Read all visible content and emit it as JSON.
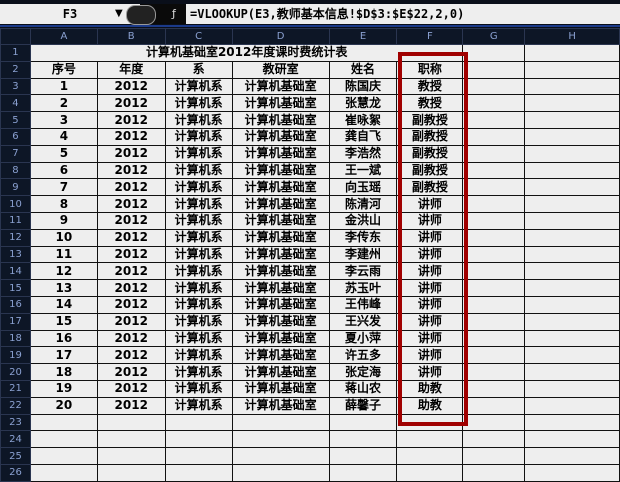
{
  "formula_bar": {
    "name_box": "F3",
    "formula": "=VLOOKUP(E3,教师基本信息!$D$3:$E$22,2,0)"
  },
  "columns": [
    "A",
    "B",
    "C",
    "D",
    "E",
    "F",
    "G",
    "H"
  ],
  "title": "计算机基础室2012年度课时费统计表",
  "headers": [
    "序号",
    "年度",
    "系",
    "教研室",
    "姓名",
    "职称"
  ],
  "rows": [
    [
      "1",
      "2012",
      "计算机系",
      "计算机基础室",
      "陈国庆",
      "教授"
    ],
    [
      "2",
      "2012",
      "计算机系",
      "计算机基础室",
      "张慧龙",
      "教授"
    ],
    [
      "3",
      "2012",
      "计算机系",
      "计算机基础室",
      "崔咏絮",
      "副教授"
    ],
    [
      "4",
      "2012",
      "计算机系",
      "计算机基础室",
      "龚自飞",
      "副教授"
    ],
    [
      "5",
      "2012",
      "计算机系",
      "计算机基础室",
      "李浩然",
      "副教授"
    ],
    [
      "6",
      "2012",
      "计算机系",
      "计算机基础室",
      "王一斌",
      "副教授"
    ],
    [
      "7",
      "2012",
      "计算机系",
      "计算机基础室",
      "向玉瑶",
      "副教授"
    ],
    [
      "8",
      "2012",
      "计算机系",
      "计算机基础室",
      "陈清河",
      "讲师"
    ],
    [
      "9",
      "2012",
      "计算机系",
      "计算机基础室",
      "金洪山",
      "讲师"
    ],
    [
      "10",
      "2012",
      "计算机系",
      "计算机基础室",
      "李传东",
      "讲师"
    ],
    [
      "11",
      "2012",
      "计算机系",
      "计算机基础室",
      "李建州",
      "讲师"
    ],
    [
      "12",
      "2012",
      "计算机系",
      "计算机基础室",
      "李云雨",
      "讲师"
    ],
    [
      "13",
      "2012",
      "计算机系",
      "计算机基础室",
      "苏玉叶",
      "讲师"
    ],
    [
      "14",
      "2012",
      "计算机系",
      "计算机基础室",
      "王伟峰",
      "讲师"
    ],
    [
      "15",
      "2012",
      "计算机系",
      "计算机基础室",
      "王兴发",
      "讲师"
    ],
    [
      "16",
      "2012",
      "计算机系",
      "计算机基础室",
      "夏小萍",
      "讲师"
    ],
    [
      "17",
      "2012",
      "计算机系",
      "计算机基础室",
      "许五多",
      "讲师"
    ],
    [
      "18",
      "2012",
      "计算机系",
      "计算机基础室",
      "张定海",
      "讲师"
    ],
    [
      "19",
      "2012",
      "计算机系",
      "计算机基础室",
      "蒋山农",
      "助教"
    ],
    [
      "20",
      "2012",
      "计算机系",
      "计算机基础室",
      "薛馨子",
      "助教"
    ]
  ],
  "highlight_color": "#a00000"
}
